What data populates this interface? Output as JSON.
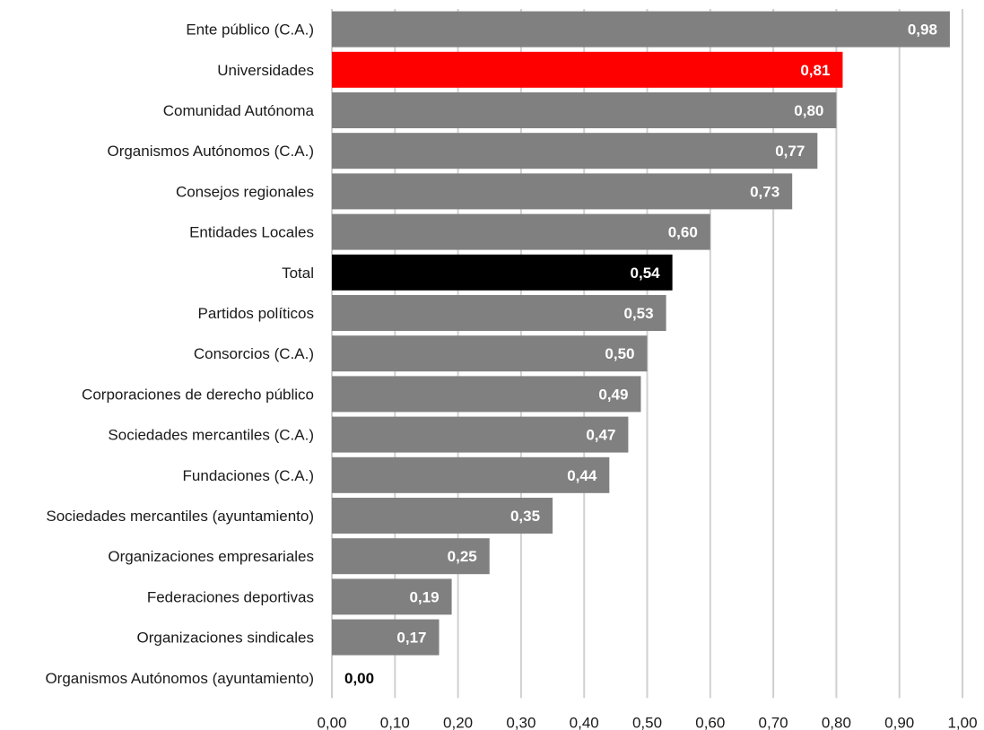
{
  "chart_data": {
    "type": "bar",
    "orientation": "horizontal",
    "title": "",
    "xlabel": "",
    "ylabel": "",
    "categories": [
      "Ente público (C.A.)",
      "Universidades",
      "Comunidad Autónoma",
      "Organismos Autónomos (C.A.)",
      "Consejos regionales",
      "Entidades Locales",
      "Total",
      "Partidos políticos",
      "Consorcios (C.A.)",
      "Corporaciones de derecho público",
      "Sociedades mercantiles (C.A.)",
      "Fundaciones (C.A.)",
      "Sociedades mercantiles (ayuntamiento)",
      "Organizaciones empresariales",
      "Federaciones deportivas",
      "Organizaciones sindicales",
      "Organismos Autónomos (ayuntamiento)"
    ],
    "values": [
      0.98,
      0.81,
      0.8,
      0.77,
      0.73,
      0.6,
      0.54,
      0.53,
      0.5,
      0.49,
      0.47,
      0.44,
      0.35,
      0.25,
      0.19,
      0.17,
      0.0
    ],
    "value_labels": [
      "0,98",
      "0,81",
      "0,80",
      "0,77",
      "0,73",
      "0,60",
      "0,54",
      "0,53",
      "0,50",
      "0,49",
      "0,47",
      "0,44",
      "0,35",
      "0,25",
      "0,19",
      "0,17",
      "0,00"
    ],
    "bar_colors": [
      "#808080",
      "#ff0000",
      "#808080",
      "#808080",
      "#808080",
      "#808080",
      "#000000",
      "#808080",
      "#808080",
      "#808080",
      "#808080",
      "#808080",
      "#808080",
      "#808080",
      "#808080",
      "#808080",
      "#808080"
    ],
    "xlim": [
      0,
      1.0
    ],
    "x_ticks": [
      "0,00",
      "0,10",
      "0,20",
      "0,30",
      "0,40",
      "0,50",
      "0,60",
      "0,70",
      "0,80",
      "0,90",
      "1,00"
    ],
    "grid": true,
    "legend": "none",
    "colors": {
      "default_bar": "#808080",
      "highlight": "#ff0000",
      "total": "#000000",
      "label_on_bar": "#ffffff",
      "label_outside": "#000000"
    }
  }
}
